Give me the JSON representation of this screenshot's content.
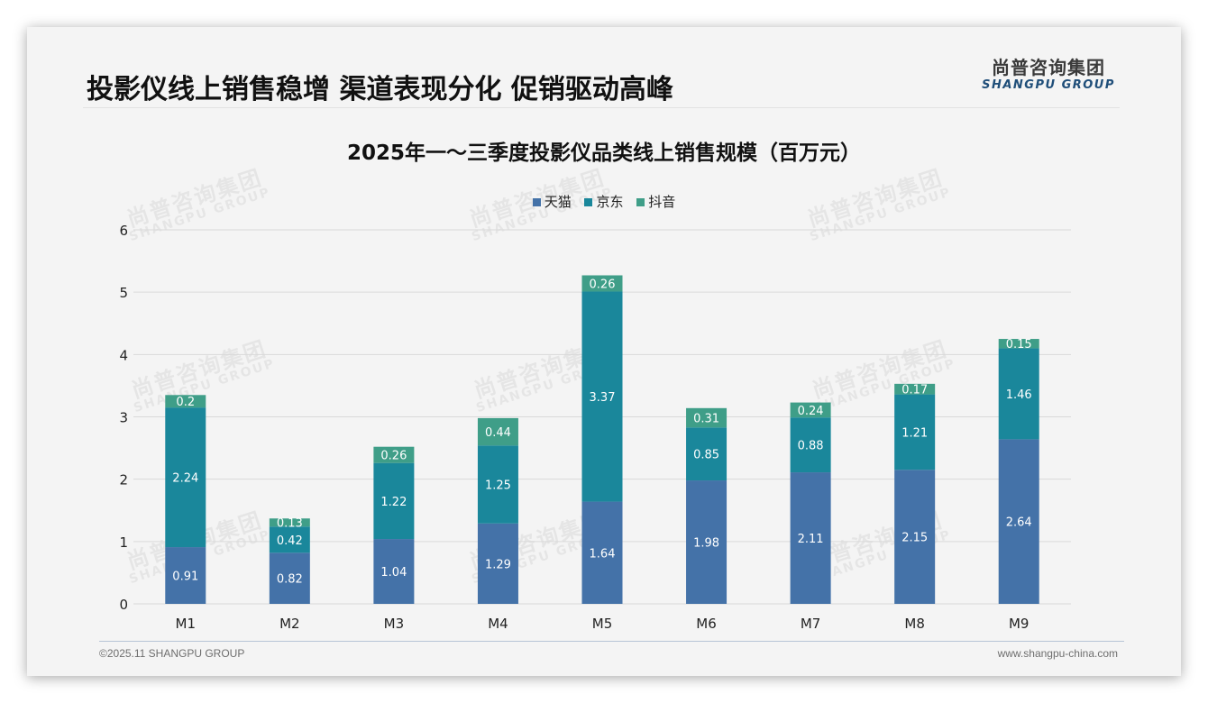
{
  "header": {
    "title": "投影仪线上销售稳增 渠道表现分化 促销驱动高峰",
    "logo_cn": "尚普咨询集团",
    "logo_en": "SHANGPU GROUP"
  },
  "watermark": {
    "cn": "尚普咨询集团",
    "en": "SHANGPU GROUP"
  },
  "footer": {
    "copyright": "©2025.11 SHANGPU GROUP",
    "website": "www.shangpu-china.com"
  },
  "colors": {
    "tmall": "#4472a8",
    "jd": "#1a879b",
    "douyin": "#3f9e88",
    "grid": "#d9d9d9",
    "label": "#ffffff"
  },
  "chart_data": {
    "type": "bar",
    "stacked": true,
    "title": "2025年一～三季度投影仪品类线上销售规模（百万元）",
    "xlabel": "",
    "ylabel": "",
    "ylim": [
      0,
      6
    ],
    "yticks": [
      0,
      1,
      2,
      3,
      4,
      5,
      6
    ],
    "grid": true,
    "legend_position": "top-center",
    "categories": [
      "M1",
      "M2",
      "M3",
      "M4",
      "M5",
      "M6",
      "M7",
      "M8",
      "M9"
    ],
    "series": [
      {
        "name": "天猫",
        "color": "#4472a8",
        "values": [
          0.91,
          0.82,
          1.04,
          1.29,
          1.64,
          1.98,
          2.11,
          2.15,
          2.64
        ]
      },
      {
        "name": "京东",
        "color": "#1a879b",
        "values": [
          2.24,
          0.42,
          1.22,
          1.25,
          3.37,
          0.85,
          0.88,
          1.21,
          1.46
        ]
      },
      {
        "name": "抖音",
        "color": "#3f9e88",
        "values": [
          0.2,
          0.13,
          0.26,
          0.44,
          0.26,
          0.31,
          0.24,
          0.17,
          0.15
        ]
      }
    ]
  }
}
